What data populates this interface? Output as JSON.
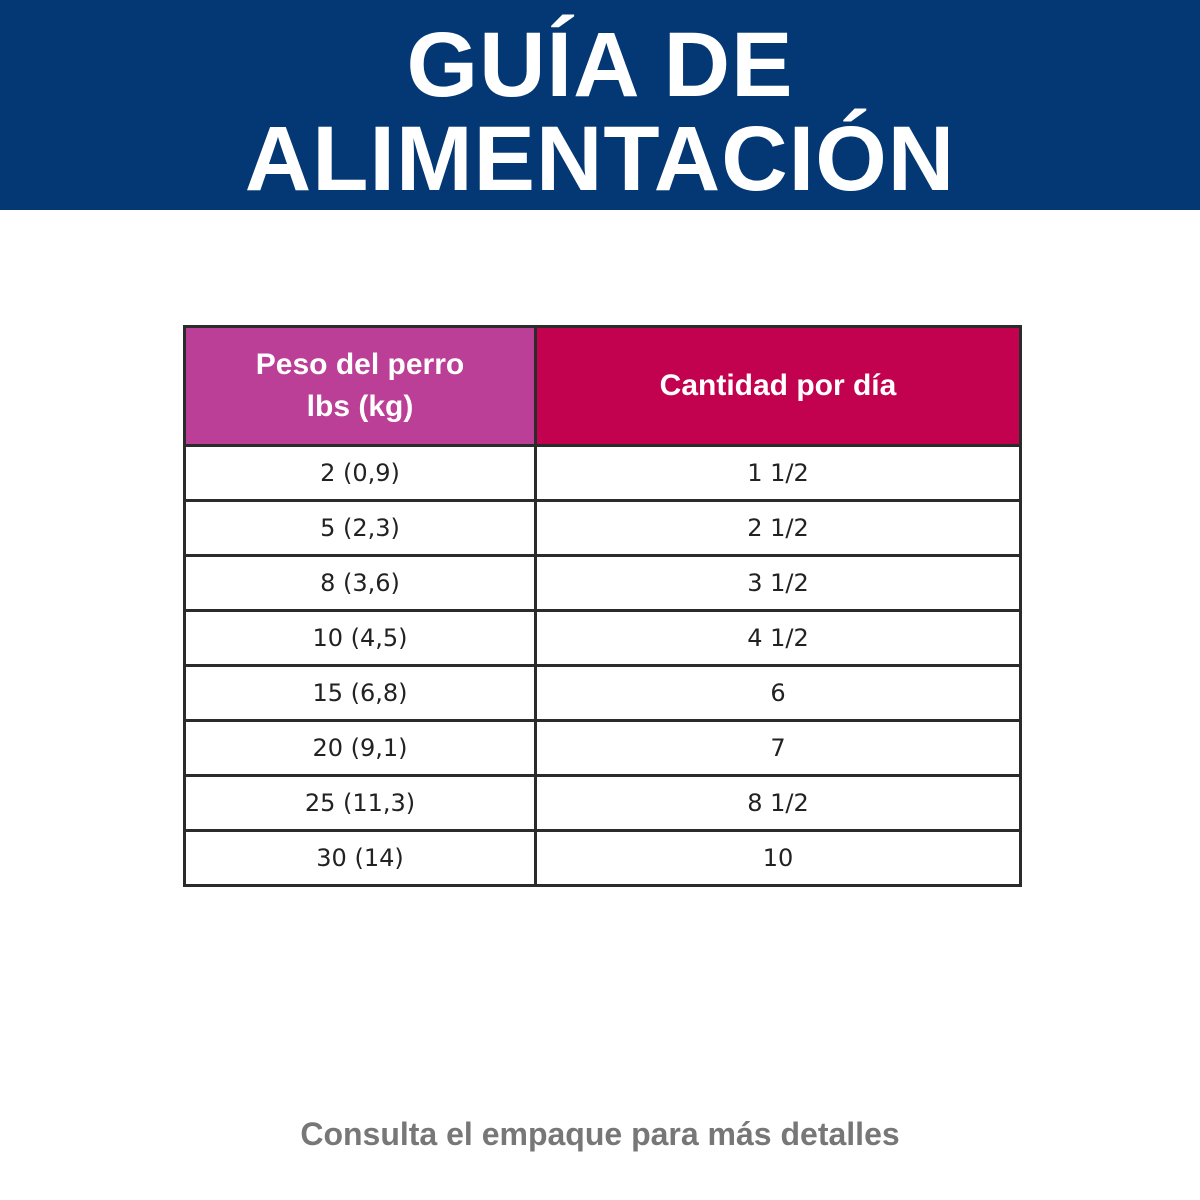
{
  "header": {
    "title_lines": [
      "GUÍA DE",
      "ALIMENTACIÓN"
    ]
  },
  "table": {
    "headers": [
      [
        "Peso del perro",
        "lbs (kg)"
      ],
      [
        "Cantidad por día"
      ]
    ],
    "rows": [
      [
        "2 (0,9)",
        "1 1/2"
      ],
      [
        "5 (2,3)",
        "2 1/2"
      ],
      [
        "8 (3,6)",
        "3 1/2"
      ],
      [
        "10 (4,5)",
        "4 1/2"
      ],
      [
        "15 (6,8)",
        "6"
      ],
      [
        "20 (9,1)",
        "7"
      ],
      [
        "25 (11,3)",
        "8 1/2"
      ],
      [
        "30 (14)",
        "10"
      ]
    ]
  },
  "footer": {
    "note": "Consulta el empaque para más detalles"
  }
}
